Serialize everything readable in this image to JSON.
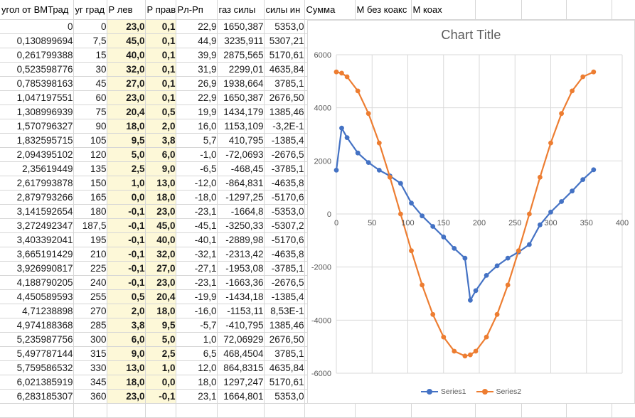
{
  "sheet": {
    "headers": [
      "угол от ВМТрад",
      "уг град",
      "Р лев",
      "Р прав",
      "Рл-Рп",
      "газ силы",
      "силы ин",
      "Сумма",
      "М без коакс",
      "М коах"
    ],
    "rows": [
      [
        "0",
        "0",
        "23,0",
        "0,1",
        "22,9",
        "1650,387",
        "5353,0"
      ],
      [
        "0,130899694",
        "7,5",
        "45,0",
        "0,1",
        "44,9",
        "3235,911",
        "5307,21"
      ],
      [
        "0,261799388",
        "15",
        "40,0",
        "0,1",
        "39,9",
        "2875,565",
        "5170,61"
      ],
      [
        "0,523598776",
        "30",
        "32,0",
        "0,1",
        "31,9",
        "2299,01",
        "4635,84"
      ],
      [
        "0,785398163",
        "45",
        "27,0",
        "0,1",
        "26,9",
        "1938,664",
        "3785,1"
      ],
      [
        "1,047197551",
        "60",
        "23,0",
        "0,1",
        "22,9",
        "1650,387",
        "2676,50"
      ],
      [
        "1,308996939",
        "75",
        "20,4",
        "0,5",
        "19,9",
        "1434,179",
        "1385,46"
      ],
      [
        "1,570796327",
        "90",
        "18,0",
        "2,0",
        "16,0",
        "1153,109",
        "-3,2E-1"
      ],
      [
        "1,832595715",
        "105",
        "9,5",
        "3,8",
        "5,7",
        "410,795",
        "-1385,4"
      ],
      [
        "2,094395102",
        "120",
        "5,0",
        "6,0",
        "-1,0",
        "-72,0693",
        "-2676,5"
      ],
      [
        "2,35619449",
        "135",
        "2,5",
        "9,0",
        "-6,5",
        "-468,45",
        "-3785,1"
      ],
      [
        "2,617993878",
        "150",
        "1,0",
        "13,0",
        "-12,0",
        "-864,831",
        "-4635,8"
      ],
      [
        "2,879793266",
        "165",
        "0,0",
        "18,0",
        "-18,0",
        "-1297,25",
        "-5170,6"
      ],
      [
        "3,141592654",
        "180",
        "-0,1",
        "23,0",
        "-23,1",
        "-1664,8",
        "-5353,0"
      ],
      [
        "3,272492347",
        "187,5",
        "-0,1",
        "45,0",
        "-45,1",
        "-3250,33",
        "-5307,2"
      ],
      [
        "3,403392041",
        "195",
        "-0,1",
        "40,0",
        "-40,1",
        "-2889,98",
        "-5170,6"
      ],
      [
        "3,665191429",
        "210",
        "-0,1",
        "32,0",
        "-32,1",
        "-2313,42",
        "-4635,8"
      ],
      [
        "3,926990817",
        "225",
        "-0,1",
        "27,0",
        "-27,1",
        "-1953,08",
        "-3785,1"
      ],
      [
        "4,188790205",
        "240",
        "-0,1",
        "23,0",
        "-23,1",
        "-1663,36",
        "-2676,5"
      ],
      [
        "4,450589593",
        "255",
        "0,5",
        "20,4",
        "-19,9",
        "-1434,18",
        "-1385,4"
      ],
      [
        "4,71238898",
        "270",
        "2,0",
        "18,0",
        "-16,0",
        "-1153,11",
        "8,53E-1"
      ],
      [
        "4,974188368",
        "285",
        "3,8",
        "9,5",
        "-5,7",
        "-410,795",
        "1385,46"
      ],
      [
        "5,235987756",
        "300",
        "6,0",
        "5,0",
        "1,0",
        "72,06929",
        "2676,50"
      ],
      [
        "5,497787144",
        "315",
        "9,0",
        "2,5",
        "6,5",
        "468,4504",
        "3785,1"
      ],
      [
        "5,759586532",
        "330",
        "13,0",
        "1,0",
        "12,0",
        "864,8315",
        "4635,84"
      ],
      [
        "6,021385919",
        "345",
        "18,0",
        "0,0",
        "18,0",
        "1297,247",
        "5170,61"
      ],
      [
        "6,283185307",
        "360",
        "23,0",
        "-0,1",
        "23,1",
        "1664,801",
        "5353,0"
      ]
    ],
    "highlight_columns": [
      2,
      3
    ]
  },
  "chart_data": {
    "type": "line",
    "title": "Chart Title",
    "x": [
      0,
      7.5,
      15,
      30,
      45,
      60,
      75,
      90,
      105,
      120,
      135,
      150,
      165,
      180,
      187.5,
      195,
      210,
      225,
      240,
      255,
      270,
      285,
      300,
      315,
      330,
      345,
      360
    ],
    "series": [
      {
        "name": "Series1",
        "color": "#4472c4",
        "values": [
          1650.387,
          3235.911,
          2875.565,
          2299.01,
          1938.664,
          1650.387,
          1434.179,
          1153.109,
          410.795,
          -72.0693,
          -468.45,
          -864.831,
          -1297.25,
          -1664.8,
          -3250.33,
          -2889.98,
          -2313.42,
          -1953.08,
          -1663.36,
          -1434.18,
          -1153.11,
          -410.795,
          72.06929,
          468.4504,
          864.8315,
          1297.247,
          1664.801
        ]
      },
      {
        "name": "Series2",
        "color": "#ed7d31",
        "values": [
          5353.0,
          5307.21,
          5170.61,
          4635.84,
          3785.1,
          2676.5,
          1385.46,
          -0.32,
          -1385.4,
          -2676.5,
          -3785.1,
          -4635.8,
          -5170.6,
          -5353.0,
          -5307.2,
          -5170.6,
          -4635.8,
          -3785.1,
          -2676.5,
          -1385.4,
          0.853,
          1385.46,
          2676.5,
          3785.1,
          4635.84,
          5170.61,
          5353.0
        ]
      }
    ],
    "xlim": [
      0,
      400
    ],
    "ylim": [
      -6000,
      6000
    ],
    "x_ticks": [
      0,
      50,
      100,
      150,
      200,
      250,
      300,
      350,
      400
    ],
    "y_ticks": [
      6000,
      4000,
      2000,
      0,
      -2000,
      -4000,
      -6000
    ],
    "grid": true,
    "legend_position": "bottom",
    "axis_text_color": "#595959",
    "grid_color": "#d9d9d9"
  },
  "colors": {
    "sheet_gridline": "#d6d6d6",
    "highlight_bg": "#fdf8d8",
    "highlight_border": "#262626",
    "chart_border": "#d9d9d9"
  }
}
